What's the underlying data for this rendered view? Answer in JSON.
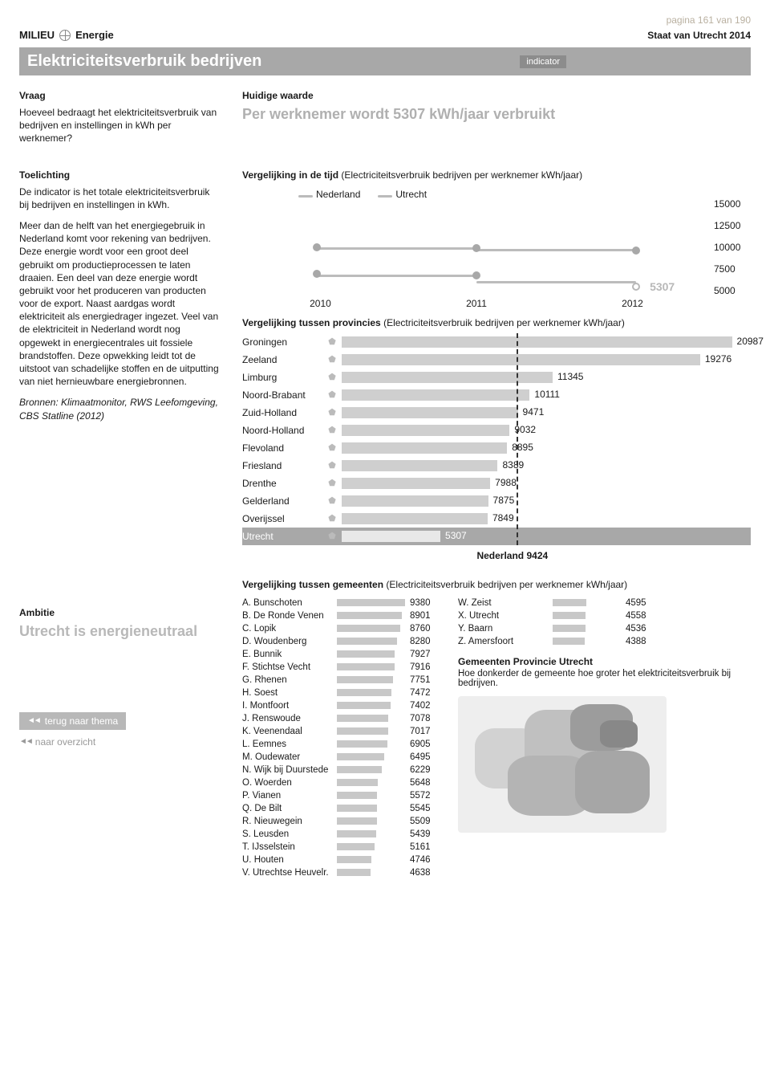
{
  "page_number": "pagina 161 van 190",
  "category": {
    "section": "MILIEU",
    "topic": "Energie"
  },
  "report_name": "Staat van Utrecht 2014",
  "title": "Elektriciteitsverbruik bedrijven",
  "badge": "indicator",
  "vraag": {
    "heading": "Vraag",
    "text": "Hoeveel bedraagt het elektriciteitsverbruik van bedrijven en instellingen in kWh per werknemer?"
  },
  "huidige": {
    "heading": "Huidige waarde",
    "text": "Per werknemer wordt 5307 kWh/jaar verbruikt"
  },
  "toelichting": {
    "heading": "Toelichting",
    "p1": "De indicator is het totale elektriciteitsverbruik bij bedrijven en instellingen in kWh.",
    "p2": "Meer dan de helft van het energiegebruik in Nederland komt voor rekening van bedrijven. Deze energie wordt voor een groot deel gebruikt om productieprocessen te laten draaien. Een deel van deze energie wordt gebruikt voor het produceren van producten voor de export. Naast aardgas wordt elektriciteit als energiedrager ingezet. Veel van de elektriciteit in Nederland wordt nog opgewekt in energiecentrales uit fossiele brandstoffen. Deze opwekking leidt tot de uitstoot van schadelijke stoffen en de uitputting van niet hernieuwbare energiebronnen.",
    "sources": "Bronnen: Klimaatmonitor, RWS Leefomgeving, CBS Statline (2012)"
  },
  "time_chart": {
    "title": "Vergelijking in de tijd",
    "subtitle": "(Electriciteitsverbruik bedrijven per werknemer kWh/jaar)",
    "legend": [
      "Nederland",
      "Utrecht"
    ],
    "years": [
      "2010",
      "2011",
      "2012"
    ],
    "y_ticks": [
      "15000",
      "12500",
      "10000",
      "7500",
      "5000"
    ],
    "y_min": 5000,
    "y_max": 15000,
    "series": {
      "Nederland": [
        10000,
        9900,
        9600
      ],
      "Utrecht": [
        6800,
        6700,
        5307
      ]
    },
    "annotation": "5307"
  },
  "prov_chart": {
    "title": "Vergelijking tussen provincies",
    "subtitle": "(Electriciteitsverbruik bedrijven per werknemer kWh/jaar)",
    "max": 22000,
    "nl_ref": {
      "label": "Nederland 9424",
      "value": 9424
    },
    "rows": [
      {
        "name": "Groningen",
        "value": 20987
      },
      {
        "name": "Zeeland",
        "value": 19276
      },
      {
        "name": "Limburg",
        "value": 11345
      },
      {
        "name": "Noord-Brabant",
        "value": 10111
      },
      {
        "name": "Zuid-Holland",
        "value": 9471
      },
      {
        "name": "Noord-Holland",
        "value": 9032
      },
      {
        "name": "Flevoland",
        "value": 8895
      },
      {
        "name": "Friesland",
        "value": 8389
      },
      {
        "name": "Drenthe",
        "value": 7988
      },
      {
        "name": "Gelderland",
        "value": 7875
      },
      {
        "name": "Overijssel",
        "value": 7849
      },
      {
        "name": "Utrecht",
        "value": 5307,
        "highlight": true
      }
    ]
  },
  "gem_chart": {
    "title": "Vergelijking tussen gemeenten",
    "subtitle": "(Electriciteitsverbruik bedrijven per werknemer kWh/jaar)",
    "max": 9380,
    "col1": [
      {
        "l": "A. Bunschoten",
        "v": 9380
      },
      {
        "l": "B. De Ronde Venen",
        "v": 8901
      },
      {
        "l": "C. Lopik",
        "v": 8760
      },
      {
        "l": "D. Woudenberg",
        "v": 8280
      },
      {
        "l": "E. Bunnik",
        "v": 7927
      },
      {
        "l": "F. Stichtse Vecht",
        "v": 7916
      },
      {
        "l": "G. Rhenen",
        "v": 7751
      },
      {
        "l": "H. Soest",
        "v": 7472
      },
      {
        "l": "I. Montfoort",
        "v": 7402
      },
      {
        "l": "J. Renswoude",
        "v": 7078
      },
      {
        "l": "K. Veenendaal",
        "v": 7017
      },
      {
        "l": "L. Eemnes",
        "v": 6905
      },
      {
        "l": "M. Oudewater",
        "v": 6495
      },
      {
        "l": "N. Wijk bij Duurstede",
        "v": 6229
      },
      {
        "l": "O. Woerden",
        "v": 5648
      },
      {
        "l": "P. Vianen",
        "v": 5572
      },
      {
        "l": "Q. De Bilt",
        "v": 5545
      },
      {
        "l": "R. Nieuwegein",
        "v": 5509
      },
      {
        "l": "S. Leusden",
        "v": 5439
      },
      {
        "l": "T. IJsselstein",
        "v": 5161
      },
      {
        "l": "U. Houten",
        "v": 4746
      },
      {
        "l": "V. Utrechtse Heuvelr.",
        "v": 4638
      }
    ],
    "col2": [
      {
        "l": "W. Zeist",
        "v": 4595
      },
      {
        "l": "X. Utrecht",
        "v": 4558
      },
      {
        "l": "Y. Baarn",
        "v": 4536
      },
      {
        "l": "Z. Amersfoort",
        "v": 4388
      }
    ],
    "map_heading": "Gemeenten Provincie Utrecht",
    "map_caption": "Hoe donkerder de gemeente hoe groter het elektriciteitsverbruik bij bedrijven."
  },
  "ambitie": {
    "heading": "Ambitie",
    "text": "Utrecht is energieneutraal"
  },
  "nav": {
    "back": "terug naar thema",
    "overview": "naar overzicht"
  }
}
